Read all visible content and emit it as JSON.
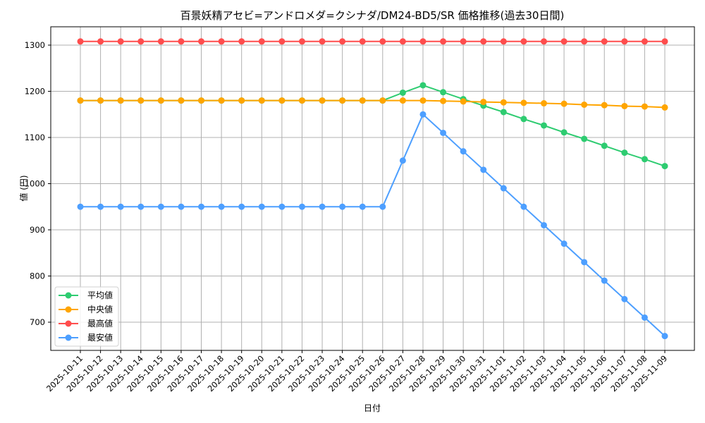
{
  "chart_data": {
    "type": "line",
    "title": "百景妖精アセビ=アンドロメダ=クシナダ/DM24-BD5/SR 価格推移(過去30日間)",
    "xlabel": "日付",
    "ylabel": "値 (円)",
    "ylim": [
      636,
      1337
    ],
    "yticks": [
      700,
      800,
      900,
      1000,
      1100,
      1200,
      1300
    ],
    "grid": true,
    "legend_position": "lower left",
    "x": [
      "2025-10-11",
      "2025-10-12",
      "2025-10-13",
      "2025-10-14",
      "2025-10-15",
      "2025-10-16",
      "2025-10-17",
      "2025-10-18",
      "2025-10-19",
      "2025-10-20",
      "2025-10-21",
      "2025-10-22",
      "2025-10-23",
      "2025-10-24",
      "2025-10-25",
      "2025-10-26",
      "2025-10-27",
      "2025-10-28",
      "2025-10-29",
      "2025-10-30",
      "2025-10-31",
      "2025-11-01",
      "2025-11-02",
      "2025-11-03",
      "2025-11-04",
      "2025-11-05",
      "2025-11-06",
      "2025-11-07",
      "2025-11-08",
      "2025-11-09"
    ],
    "series": [
      {
        "name": "平均値",
        "color": "#2ecc71",
        "values": [
          1180,
          1180,
          1180,
          1180,
          1180,
          1180,
          1180,
          1180,
          1180,
          1180,
          1180,
          1180,
          1180,
          1180,
          1180,
          1180,
          1197,
          1213,
          1198,
          1183,
          1169,
          1155,
          1140,
          1126,
          1111,
          1097,
          1082,
          1067,
          1053,
          1038
        ]
      },
      {
        "name": "中央値",
        "color": "#ffa500",
        "values": [
          1180,
          1180,
          1180,
          1180,
          1180,
          1180,
          1180,
          1180,
          1180,
          1180,
          1180,
          1180,
          1180,
          1180,
          1180,
          1180,
          1180,
          1180,
          1179,
          1178,
          1177,
          1176,
          1175,
          1174,
          1173,
          1171,
          1170,
          1168,
          1167,
          1165
        ]
      },
      {
        "name": "最高値",
        "color": "#ff4d4d",
        "values": [
          1308,
          1308,
          1308,
          1308,
          1308,
          1308,
          1308,
          1308,
          1308,
          1308,
          1308,
          1308,
          1308,
          1308,
          1308,
          1308,
          1308,
          1308,
          1308,
          1308,
          1308,
          1308,
          1308,
          1308,
          1308,
          1308,
          1308,
          1308,
          1308,
          1308
        ]
      },
      {
        "name": "最安値",
        "color": "#4d9fff",
        "values": [
          950,
          950,
          950,
          950,
          950,
          950,
          950,
          950,
          950,
          950,
          950,
          950,
          950,
          950,
          950,
          950,
          1050,
          1150,
          1110,
          1070,
          1030,
          990,
          950,
          910,
          870,
          830,
          790,
          750,
          710,
          670
        ]
      }
    ]
  }
}
